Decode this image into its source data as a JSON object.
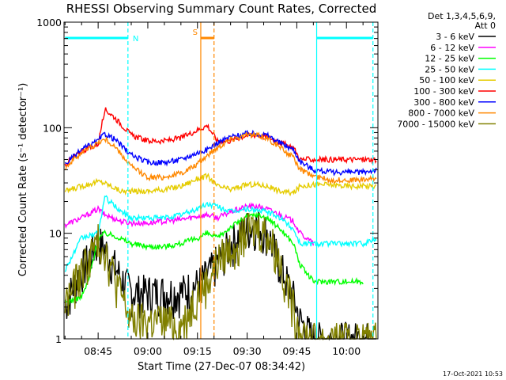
{
  "chart_data": {
    "type": "line",
    "title": "RHESSI Observing Summary Count Rates, Corrected",
    "xlabel": "Start Time (27-Dec-07 08:34:42)",
    "ylabel": "Corrected Count Rate (s⁻¹ detector⁻¹)",
    "y_scale": "log",
    "ylim": [
      1,
      1000
    ],
    "xlim": [
      "08:34:42",
      "10:09:30"
    ],
    "x_ticks": [
      "08:45",
      "09:00",
      "09:15",
      "09:30",
      "09:45",
      "10:00"
    ],
    "y_ticks": [
      "1",
      "10",
      "100",
      "1000"
    ],
    "grid": false,
    "legend": {
      "position": "right",
      "header": [
        "Det 1,3,4,5,6,9,",
        "Att 0"
      ]
    },
    "series": [
      {
        "name": "3 - 6 keV",
        "color": "#000000",
        "x": [
          "08:35",
          "08:40",
          "08:45",
          "08:47",
          "08:52",
          "08:55",
          "09:00",
          "09:05",
          "09:10",
          "09:15",
          "09:18",
          "09:21",
          "09:25",
          "09:30",
          "09:33",
          "09:36",
          "09:40",
          "09:44",
          "09:46",
          "09:50",
          "09:55",
          "10:00",
          "10:05",
          "10:09"
        ],
        "y": [
          2.2,
          4.5,
          8.5,
          7.2,
          3.8,
          2.8,
          2.8,
          2.8,
          2.8,
          3.3,
          4.0,
          5.5,
          8.0,
          11.5,
          12.0,
          10.5,
          5.0,
          2.5,
          1.5,
          1.0,
          1.0,
          1.0,
          1.0,
          1.0
        ]
      },
      {
        "name": "6 - 12 keV",
        "color": "#ff00ff",
        "x": [
          "08:35",
          "08:40",
          "08:45",
          "08:47",
          "08:52",
          "08:55",
          "09:00",
          "09:05",
          "09:10",
          "09:15",
          "09:18",
          "09:21",
          "09:25",
          "09:30",
          "09:33",
          "09:36",
          "09:40",
          "09:44",
          "09:46",
          "09:50"
        ],
        "y": [
          12,
          14,
          17,
          15,
          13,
          12.5,
          12.5,
          13,
          13.5,
          14.5,
          15,
          14,
          16,
          18,
          18,
          17,
          15,
          13,
          10,
          8
        ]
      },
      {
        "name": "12 - 25 keV",
        "color": "#00ff00",
        "x": [
          "08:35",
          "08:40",
          "08:42",
          "08:45",
          "08:47",
          "08:50",
          "08:55",
          "09:00",
          "09:05",
          "09:10",
          "09:15",
          "09:18",
          "09:21",
          "09:25",
          "09:30",
          "09:33",
          "09:36",
          "09:40",
          "09:44",
          "09:46",
          "09:50",
          "09:55",
          "10:00",
          "10:05"
        ],
        "y": [
          2.2,
          2.5,
          3.5,
          9.0,
          10,
          9.5,
          8.0,
          7.5,
          7.5,
          8.0,
          9.0,
          10.0,
          9.0,
          11.5,
          14.5,
          15.0,
          14.0,
          11.0,
          8.0,
          5.0,
          3.5,
          3.5,
          3.5,
          3.5
        ]
      },
      {
        "name": "25 - 50 keV",
        "color": "#00ffff",
        "x": [
          "08:35",
          "08:40",
          "08:45",
          "08:47",
          "08:52",
          "08:55",
          "09:00",
          "09:05",
          "09:10",
          "09:15",
          "09:18",
          "09:21",
          "09:25",
          "09:30",
          "09:33",
          "09:36",
          "09:40",
          "09:44",
          "09:46",
          "09:50",
          "09:55",
          "10:00",
          "10:05",
          "10:09"
        ],
        "y": [
          4.5,
          9,
          10,
          22,
          16,
          14,
          14,
          14,
          15,
          17,
          19,
          18,
          16,
          17,
          16.5,
          16,
          14,
          11,
          8,
          8,
          8,
          8,
          8,
          9
        ]
      },
      {
        "name": "50 - 100 keV",
        "color": "#e5cc00",
        "x": [
          "08:35",
          "08:40",
          "08:45",
          "08:47",
          "08:52",
          "08:55",
          "09:00",
          "09:05",
          "09:10",
          "09:15",
          "09:18",
          "09:21",
          "09:25",
          "09:30",
          "09:33",
          "09:36",
          "09:40",
          "09:44",
          "09:46",
          "09:50",
          "09:55",
          "10:00",
          "10:05",
          "10:09"
        ],
        "y": [
          25,
          28,
          31,
          30,
          25,
          25,
          25,
          26,
          28,
          33,
          35,
          28,
          26,
          29,
          29,
          28,
          25,
          24,
          28,
          29,
          29,
          28,
          28,
          28
        ]
      },
      {
        "name": "100 - 300 keV",
        "color": "#ff0000",
        "x": [
          "08:35",
          "08:40",
          "08:45",
          "08:47",
          "08:50",
          "08:55",
          "09:00",
          "09:05",
          "09:10",
          "09:15",
          "09:18",
          "09:21",
          "09:25",
          "09:30",
          "09:33",
          "09:36",
          "09:40",
          "09:44",
          "09:46",
          "09:50",
          "09:55",
          "10:00",
          "10:05",
          "10:09"
        ],
        "y": [
          45,
          60,
          70,
          150,
          125,
          85,
          75,
          75,
          80,
          95,
          105,
          75,
          75,
          85,
          85,
          82,
          72,
          65,
          50,
          50,
          50,
          50,
          50,
          50
        ]
      },
      {
        "name": "300 - 800 keV",
        "color": "#0000ff",
        "x": [
          "08:35",
          "08:40",
          "08:45",
          "08:47",
          "08:50",
          "08:55",
          "09:00",
          "09:05",
          "09:10",
          "09:15",
          "09:18",
          "09:21",
          "09:25",
          "09:30",
          "09:33",
          "09:36",
          "09:40",
          "09:44",
          "09:46",
          "09:50",
          "09:55",
          "10:00",
          "10:05",
          "10:09"
        ],
        "y": [
          45,
          62,
          75,
          88,
          78,
          55,
          47,
          47,
          50,
          58,
          62,
          72,
          82,
          88,
          88,
          85,
          72,
          62,
          48,
          40,
          38,
          38,
          38,
          40
        ]
      },
      {
        "name": "800 - 7000 keV",
        "color": "#ff8800",
        "x": [
          "08:35",
          "08:40",
          "08:45",
          "08:47",
          "08:50",
          "08:55",
          "09:00",
          "09:05",
          "09:10",
          "09:15",
          "09:18",
          "09:21",
          "09:25",
          "09:30",
          "09:33",
          "09:36",
          "09:40",
          "09:44",
          "09:46",
          "09:50",
          "09:55",
          "10:00",
          "10:05",
          "10:09"
        ],
        "y": [
          42,
          58,
          72,
          78,
          66,
          43,
          34,
          34,
          37,
          45,
          55,
          65,
          78,
          85,
          85,
          80,
          65,
          52,
          40,
          35,
          32,
          32,
          32,
          33
        ]
      },
      {
        "name": "7000 - 15000 keV",
        "color": "#808000",
        "x": [
          "08:35",
          "08:40",
          "08:45",
          "08:47",
          "08:50",
          "08:55",
          "09:00",
          "09:05",
          "09:10",
          "09:15",
          "09:18",
          "09:21",
          "09:25",
          "09:30",
          "09:33",
          "09:36",
          "09:40",
          "09:44",
          "09:46",
          "09:50",
          "09:55",
          "10:00",
          "10:05",
          "10:09"
        ],
        "y": [
          2.2,
          4.5,
          8.5,
          7.5,
          3.8,
          1.5,
          1.5,
          1.5,
          1.3,
          2.8,
          3.5,
          5.5,
          7.5,
          10.5,
          11.5,
          10.5,
          5.5,
          2.0,
          1.2,
          1.0,
          1.0,
          1.0,
          1.0,
          1.0
        ]
      }
    ],
    "annotations": [
      {
        "text": "N",
        "color": "#00ffff",
        "x_start": "08:35",
        "x_end": "08:54"
      },
      {
        "text": "N",
        "color": "#00ffff",
        "x_start": "09:51",
        "x_end": "10:08"
      },
      {
        "text": "S",
        "color": "#ff8800",
        "x_start": "09:16",
        "x_end": "09:20"
      }
    ],
    "vlines": [
      {
        "x": "08:54",
        "color": "#00ffff",
        "style": "dashed"
      },
      {
        "x": "09:51",
        "color": "#00ffff",
        "style": "solid"
      },
      {
        "x": "10:08",
        "color": "#00ffff",
        "style": "dashed"
      },
      {
        "x": "09:16",
        "color": "#ff8800",
        "style": "solid"
      },
      {
        "x": "09:20",
        "color": "#ff8800",
        "style": "dashed"
      }
    ],
    "timestamp": "17-Oct-2021 10:53"
  }
}
